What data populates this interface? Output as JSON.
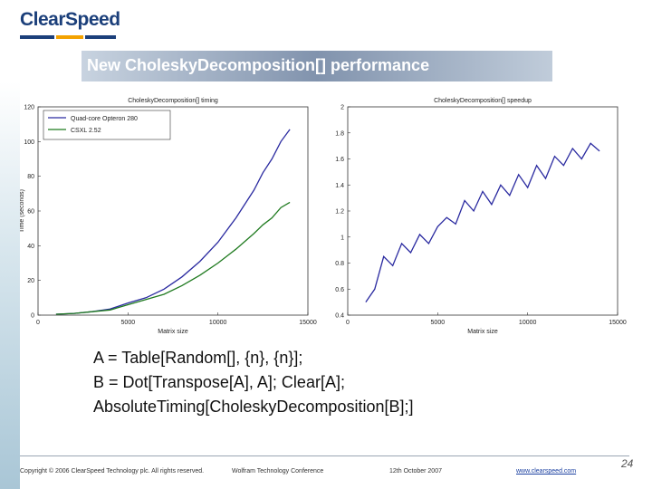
{
  "header": {
    "logo_text": "ClearSpeed",
    "logo_colors": [
      "#1b3f7a",
      "#f3a200",
      "#1b3f7a"
    ],
    "title": "New CholeskyDecomposition[] performance"
  },
  "chart_data": [
    {
      "type": "line",
      "title": "CholeskyDecomposition[] timing",
      "xlabel": "Matrix size",
      "ylabel": "Time (seconds)",
      "xlim": [
        0,
        15000
      ],
      "ylim": [
        0,
        120
      ],
      "xticks": [
        0,
        5000,
        10000,
        15000
      ],
      "yticks": [
        0,
        20,
        40,
        60,
        80,
        100,
        120
      ],
      "legend_position": "top-left",
      "grid": false,
      "series": [
        {
          "name": "Quad-core Opteron 280",
          "color": "#2a2aa0",
          "x": [
            1000,
            2000,
            3000,
            4000,
            5000,
            6000,
            7000,
            8000,
            9000,
            10000,
            11000,
            12000,
            12500,
            13000,
            13500,
            14000
          ],
          "y": [
            0.5,
            1,
            2,
            3.5,
            7,
            10,
            15,
            22,
            31,
            42,
            56,
            72,
            82,
            90,
            100,
            107
          ]
        },
        {
          "name": "CSXL 2.52",
          "color": "#1f7a1f",
          "x": [
            1000,
            2000,
            3000,
            4000,
            5000,
            6000,
            7000,
            8000,
            9000,
            10000,
            11000,
            12000,
            12500,
            13000,
            13500,
            14000
          ],
          "y": [
            0.5,
            1,
            2,
            3,
            6,
            9,
            12,
            17,
            23,
            30,
            38,
            47,
            52,
            56,
            62,
            65
          ]
        }
      ]
    },
    {
      "type": "line",
      "title": "CholeskyDecomposition[] speedup",
      "xlabel": "Matrix size",
      "ylabel": "",
      "xlim": [
        0,
        15000
      ],
      "ylim": [
        0.4,
        2.0
      ],
      "xticks": [
        0,
        5000,
        10000,
        15000
      ],
      "yticks": [
        0.4,
        0.6,
        0.8,
        1.0,
        1.2,
        1.4,
        1.6,
        1.8,
        2.0
      ],
      "ytick_labels": [
        "0.4",
        "0.6",
        "0.8",
        "1",
        "1.2",
        "1.4",
        "1.6",
        "1.8",
        "2"
      ],
      "grid": false,
      "series": [
        {
          "color": "#2a2aa0",
          "x": [
            1000,
            1500,
            2000,
            2500,
            3000,
            3500,
            4000,
            4500,
            5000,
            5500,
            6000,
            6500,
            7000,
            7500,
            8000,
            8500,
            9000,
            9500,
            10000,
            10500,
            11000,
            11500,
            12000,
            12500,
            13000,
            13500,
            14000
          ],
          "y": [
            0.5,
            0.6,
            0.85,
            0.78,
            0.95,
            0.88,
            1.02,
            0.95,
            1.08,
            1.15,
            1.1,
            1.28,
            1.2,
            1.35,
            1.25,
            1.4,
            1.32,
            1.48,
            1.38,
            1.55,
            1.45,
            1.62,
            1.55,
            1.68,
            1.6,
            1.72,
            1.66
          ]
        }
      ]
    }
  ],
  "code_lines": [
    "A = Table[Random[], {n}, {n}];",
    "B = Dot[Transpose[A], A]; Clear[A];",
    "AbsoluteTiming[CholeskyDecomposition[B];]"
  ],
  "footer": {
    "copyright": "Copyright © 2006 ClearSpeed Technology plc. All rights reserved.",
    "conference": "Wolfram Technology Conference",
    "date": "12th October 2007",
    "website": "www.clearspeed.com",
    "page_number": "24"
  }
}
